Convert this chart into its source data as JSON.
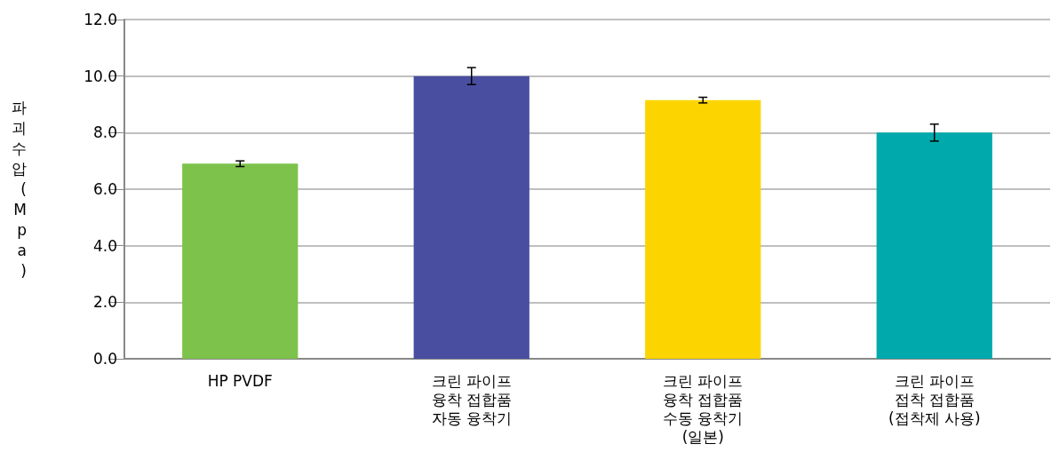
{
  "chart_data": {
    "type": "bar",
    "ylabel": "파괴수압(Mpa)",
    "categories": [
      "HP PVDF",
      "크린 파이프\n융착 접합품\n자동 융착기",
      "크린 파이프\n융착 접합품\n수동 융착기\n(일본)",
      "크린 파이프\n접착 접합품\n(접착제 사용)"
    ],
    "values": [
      6.9,
      10.0,
      9.15,
      8.0
    ],
    "colors": [
      "#7dc24b",
      "#4a4ea0",
      "#fcd500",
      "#00aaac"
    ],
    "errors": [
      0.1,
      0.3,
      0.1,
      0.3
    ],
    "ylim": [
      0,
      12
    ],
    "yticks": [
      {
        "value": 0,
        "label": "0.0"
      },
      {
        "value": 2,
        "label": "2.0"
      },
      {
        "value": 4,
        "label": "4.0"
      },
      {
        "value": 6,
        "label": "6.0"
      },
      {
        "value": 8,
        "label": "8.0"
      },
      {
        "value": 10,
        "label": "10.0"
      },
      {
        "value": 12,
        "label": "12.0"
      }
    ],
    "grid": "y"
  }
}
